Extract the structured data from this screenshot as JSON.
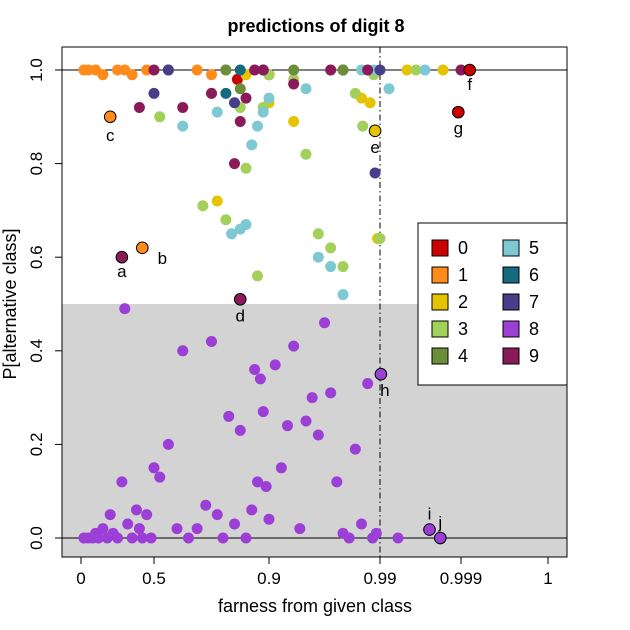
{
  "chart_data": {
    "type": "scatter",
    "title": "predictions of digit 8",
    "xlabel": "farness from given class",
    "ylabel": "P[alternative class]",
    "x_scale": "farness (reciprocal-style: ticks 0, 0.5, 0.9, 0.99, 0.999, 1)",
    "x_ticks": [
      "0",
      "0.5",
      "0.9",
      "0.99",
      "0.999",
      "1"
    ],
    "y_ticks": [
      "0.0",
      "0.2",
      "0.4",
      "0.6",
      "0.8",
      "1.0"
    ],
    "xlim": [
      0,
      1
    ],
    "ylim": [
      0,
      1
    ],
    "shaded_region": {
      "y_from": 0,
      "y_to": 0.5,
      "color": "#d3d3d3"
    },
    "reference_lines": [
      {
        "type": "horizontal",
        "y": 0,
        "style": "solid"
      },
      {
        "type": "horizontal",
        "y": 1,
        "style": "solid"
      },
      {
        "type": "vertical",
        "x": 0.99,
        "style": "dash-dot"
      }
    ],
    "legend": {
      "position": "right-middle",
      "entries": [
        {
          "label": "0",
          "color": "#cc0000"
        },
        {
          "label": "1",
          "color": "#ff8c1a"
        },
        {
          "label": "2",
          "color": "#e6c300"
        },
        {
          "label": "3",
          "color": "#a3d05a"
        },
        {
          "label": "4",
          "color": "#6b8e3a"
        },
        {
          "label": "5",
          "color": "#7ec8d4"
        },
        {
          "label": "6",
          "color": "#156a80"
        },
        {
          "label": "7",
          "color": "#483d8b"
        },
        {
          "label": "8",
          "color": "#9b3fd6"
        },
        {
          "label": "9",
          "color": "#8b1a5a"
        }
      ]
    },
    "labeled_points": [
      {
        "label": "a",
        "x": 0.28,
        "y": 0.6,
        "class": "9"
      },
      {
        "label": "b",
        "x": 0.42,
        "y": 0.62,
        "class": "1"
      },
      {
        "label": "c",
        "x": 0.2,
        "y": 0.9,
        "class": "1"
      },
      {
        "label": "d",
        "x": 0.8,
        "y": 0.51,
        "class": "9"
      },
      {
        "label": "e",
        "x": 0.986,
        "y": 0.87,
        "class": "2"
      },
      {
        "label": "f",
        "x": 0.9991,
        "y": 1.0,
        "class": "0"
      },
      {
        "label": "g",
        "x": 0.9987,
        "y": 0.91,
        "class": "0"
      },
      {
        "label": "h",
        "x": 0.9901,
        "y": 0.35,
        "class": "8"
      },
      {
        "label": "i",
        "x": 0.9955,
        "y": 0.018,
        "class": "8"
      },
      {
        "label": "j",
        "x": 0.9967,
        "y": 0.0,
        "class": "8"
      }
    ],
    "series": [
      {
        "name": "0",
        "points": [
          [
            0.79,
            0.98
          ],
          [
            0.9,
            0.99
          ],
          [
            0.96,
            1.0
          ],
          [
            0.9987,
            0.91
          ],
          [
            0.9991,
            1.0
          ]
        ]
      },
      {
        "name": "1",
        "points": [
          [
            0.02,
            1.0
          ],
          [
            0.05,
            1.0
          ],
          [
            0.1,
            1.0
          ],
          [
            0.15,
            0.99
          ],
          [
            0.2,
            0.9
          ],
          [
            0.25,
            1.0
          ],
          [
            0.3,
            1.0
          ],
          [
            0.35,
            0.99
          ],
          [
            0.42,
            0.62
          ],
          [
            0.45,
            1.0
          ],
          [
            0.55,
            1.0
          ],
          [
            0.65,
            1.0
          ],
          [
            0.7,
            0.99
          ],
          [
            0.75,
            1.0
          ]
        ]
      },
      {
        "name": "2",
        "points": [
          [
            0.72,
            0.72
          ],
          [
            0.82,
            0.99
          ],
          [
            0.9,
            0.93
          ],
          [
            0.92,
            0.89
          ],
          [
            0.95,
            1.0
          ],
          [
            0.975,
            0.94
          ],
          [
            0.982,
            0.93
          ],
          [
            0.986,
            0.87
          ],
          [
            0.988,
            0.64
          ],
          [
            0.993,
            1.0
          ],
          [
            0.997,
            1.0
          ]
        ]
      },
      {
        "name": "3",
        "points": [
          [
            0.52,
            0.9
          ],
          [
            0.67,
            0.71
          ],
          [
            0.7,
            0.95
          ],
          [
            0.75,
            0.68
          ],
          [
            0.8,
            0.92
          ],
          [
            0.82,
            0.79
          ],
          [
            0.86,
            0.56
          ],
          [
            0.88,
            0.92
          ],
          [
            0.9,
            0.99
          ],
          [
            0.92,
            0.98
          ],
          [
            0.93,
            0.82
          ],
          [
            0.94,
            0.65
          ],
          [
            0.95,
            0.62
          ],
          [
            0.96,
            0.58
          ],
          [
            0.97,
            0.95
          ],
          [
            0.976,
            0.88
          ],
          [
            0.985,
            0.99
          ],
          [
            0.99,
            0.64
          ],
          [
            0.994,
            1.0
          ]
        ]
      },
      {
        "name": "4",
        "points": [
          [
            0.55,
            1.0
          ],
          [
            0.75,
            1.0
          ],
          [
            0.8,
            0.96
          ],
          [
            0.92,
            1.0
          ],
          [
            0.96,
            1.0
          ]
        ]
      },
      {
        "name": "5",
        "points": [
          [
            0.6,
            0.88
          ],
          [
            0.72,
            0.91
          ],
          [
            0.77,
            0.65
          ],
          [
            0.8,
            0.66
          ],
          [
            0.82,
            0.67
          ],
          [
            0.84,
            0.84
          ],
          [
            0.86,
            0.88
          ],
          [
            0.88,
            0.91
          ],
          [
            0.9,
            0.94
          ],
          [
            0.93,
            0.96
          ],
          [
            0.94,
            0.6
          ],
          [
            0.95,
            0.58
          ],
          [
            0.96,
            0.52
          ],
          [
            0.975,
            1.0
          ],
          [
            0.985,
            1.0
          ],
          [
            0.991,
            0.96
          ],
          [
            0.995,
            1.0
          ]
        ]
      },
      {
        "name": "6",
        "points": [
          [
            0.75,
            0.95
          ],
          [
            0.8,
            1.0
          ],
          [
            0.88,
            1.0
          ]
        ]
      },
      {
        "name": "7",
        "points": [
          [
            0.5,
            0.95
          ],
          [
            0.55,
            1.0
          ],
          [
            0.78,
            0.93
          ],
          [
            0.986,
            0.78
          ],
          [
            0.99,
            1.0
          ]
        ]
      },
      {
        "name": "8",
        "points": [
          [
            0.02,
            0.0
          ],
          [
            0.05,
            0.0
          ],
          [
            0.08,
            0.0
          ],
          [
            0.1,
            0.01
          ],
          [
            0.12,
            0.0
          ],
          [
            0.15,
            0.02
          ],
          [
            0.18,
            0.0
          ],
          [
            0.2,
            0.05
          ],
          [
            0.22,
            0.01
          ],
          [
            0.25,
            0.0
          ],
          [
            0.28,
            0.12
          ],
          [
            0.3,
            0.49
          ],
          [
            0.32,
            0.03
          ],
          [
            0.35,
            0.0
          ],
          [
            0.38,
            0.06
          ],
          [
            0.4,
            0.02
          ],
          [
            0.42,
            0.0
          ],
          [
            0.45,
            0.05
          ],
          [
            0.48,
            0.0
          ],
          [
            0.5,
            0.15
          ],
          [
            0.52,
            0.13
          ],
          [
            0.55,
            0.2
          ],
          [
            0.58,
            0.02
          ],
          [
            0.6,
            0.4
          ],
          [
            0.62,
            0.0
          ],
          [
            0.65,
            0.02
          ],
          [
            0.68,
            0.07
          ],
          [
            0.7,
            0.42
          ],
          [
            0.72,
            0.05
          ],
          [
            0.74,
            0.0
          ],
          [
            0.76,
            0.26
          ],
          [
            0.78,
            0.03
          ],
          [
            0.8,
            0.23
          ],
          [
            0.82,
            0.0
          ],
          [
            0.84,
            0.06
          ],
          [
            0.85,
            0.36
          ],
          [
            0.86,
            0.12
          ],
          [
            0.87,
            0.34
          ],
          [
            0.88,
            0.27
          ],
          [
            0.89,
            0.11
          ],
          [
            0.9,
            0.04
          ],
          [
            0.905,
            0.37
          ],
          [
            0.91,
            0.15
          ],
          [
            0.915,
            0.24
          ],
          [
            0.92,
            0.41
          ],
          [
            0.925,
            0.02
          ],
          [
            0.93,
            0.25
          ],
          [
            0.935,
            0.3
          ],
          [
            0.94,
            0.22
          ],
          [
            0.945,
            0.46
          ],
          [
            0.95,
            0.31
          ],
          [
            0.955,
            0.12
          ],
          [
            0.96,
            0.01
          ],
          [
            0.965,
            0.0
          ],
          [
            0.97,
            0.19
          ],
          [
            0.975,
            0.03
          ],
          [
            0.98,
            0.33
          ],
          [
            0.984,
            0.0
          ],
          [
            0.987,
            0.01
          ],
          [
            0.9901,
            0.35
          ],
          [
            0.992,
            0.0
          ],
          [
            0.9955,
            0.018
          ],
          [
            0.9967,
            0.0
          ]
        ]
      },
      {
        "name": "9",
        "points": [
          [
            0.28,
            0.6
          ],
          [
            0.4,
            0.92
          ],
          [
            0.5,
            1.0
          ],
          [
            0.6,
            0.92
          ],
          [
            0.7,
            0.95
          ],
          [
            0.78,
            0.8
          ],
          [
            0.8,
            0.51
          ],
          [
            0.8,
            0.89
          ],
          [
            0.82,
            0.94
          ],
          [
            0.85,
            1.0
          ],
          [
            0.88,
            1.0
          ],
          [
            0.92,
            0.97
          ],
          [
            0.95,
            1.0
          ],
          [
            0.98,
            1.0
          ],
          [
            0.999,
            1.0
          ]
        ]
      }
    ]
  }
}
